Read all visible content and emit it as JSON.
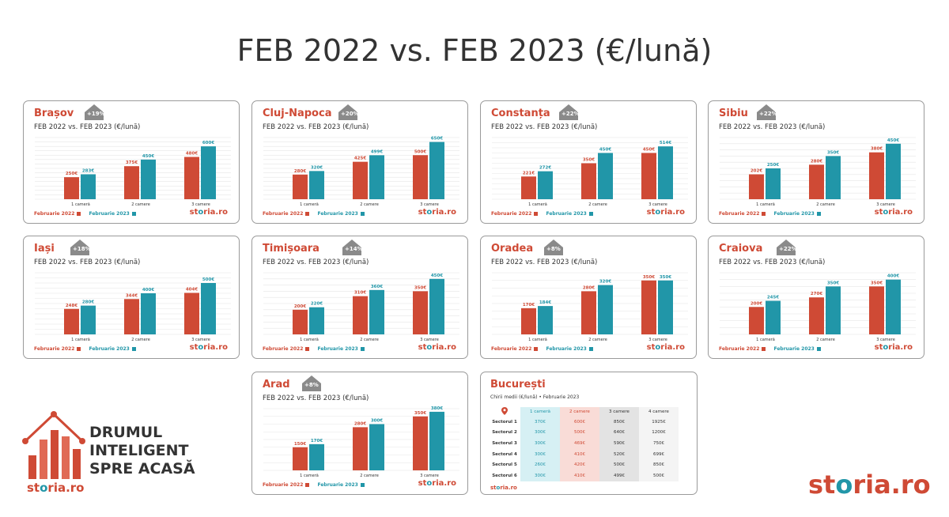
{
  "title": "FEB 2022 vs. FEB 2023 (€/lună)",
  "colors": {
    "y2022": "#cf4a35",
    "y2023": "#2196a8"
  },
  "legend": {
    "s2022": "Februarie 2022",
    "s2023": "Februarie 2023"
  },
  "brand": {
    "main": "st",
    "accent": "o",
    "rest": "ria.ro"
  },
  "logo": {
    "line1": "DRUMUL",
    "line2": "INTELIGENT",
    "line3": "SPRE ACASĂ"
  },
  "chart_data": [
    {
      "type": "bar",
      "city": "Brașov",
      "change": "+19%",
      "title": "FEB 2022 vs. FEB 2023 (€/lună)",
      "categories": [
        "1 cameră",
        "2 camere",
        "3 camere"
      ],
      "series": [
        {
          "name": "Februarie 2022",
          "values": [
            250,
            375,
            480
          ],
          "labels": [
            "250€",
            "375€",
            "480€"
          ]
        },
        {
          "name": "Februarie 2023",
          "values": [
            283,
            450,
            600
          ],
          "labels": [
            "283€",
            "450€",
            "600€"
          ]
        }
      ],
      "ylim": [
        0,
        700
      ]
    },
    {
      "type": "bar",
      "city": "Cluj-Napoca",
      "change": "+20%",
      "title": "FEB 2022 vs. FEB 2023 (€/lună)",
      "categories": [
        "1 cameră",
        "2 camere",
        "3 camere"
      ],
      "series": [
        {
          "name": "Februarie 2022",
          "values": [
            280,
            425,
            500
          ],
          "labels": [
            "280€",
            "425€",
            "500€"
          ]
        },
        {
          "name": "Februarie 2023",
          "values": [
            320,
            499,
            650
          ],
          "labels": [
            "320€",
            "499€",
            "650€"
          ]
        }
      ],
      "ylim": [
        0,
        700
      ]
    },
    {
      "type": "bar",
      "city": "Constanța",
      "change": "+22%",
      "title": "FEB 2022 vs. FEB 2023 (€/lună)",
      "categories": [
        "1 cameră",
        "2 camere",
        "3 camere"
      ],
      "series": [
        {
          "name": "Februarie 2022",
          "values": [
            221,
            350,
            450
          ],
          "labels": [
            "221€",
            "350€",
            "450€"
          ]
        },
        {
          "name": "Februarie 2023",
          "values": [
            272,
            450,
            514
          ],
          "labels": [
            "272€",
            "450€",
            "514€"
          ]
        }
      ],
      "ylim": [
        0,
        600
      ]
    },
    {
      "type": "bar",
      "city": "Sibiu",
      "change": "+22%",
      "title": "FEB 2022 vs. FEB 2023 (€/lună)",
      "categories": [
        "1 cameră",
        "2 camere",
        "3 camere"
      ],
      "series": [
        {
          "name": "Februarie 2022",
          "values": [
            202,
            280,
            380
          ],
          "labels": [
            "202€",
            "280€",
            "380€"
          ]
        },
        {
          "name": "Februarie 2023",
          "values": [
            250,
            350,
            450
          ],
          "labels": [
            "250€",
            "350€",
            "450€"
          ]
        }
      ],
      "ylim": [
        0,
        500
      ]
    },
    {
      "type": "bar",
      "city": "Iași",
      "change": "+18%",
      "title": "FEB 2022 vs. FEB 2023 (€/lună)",
      "categories": [
        "1 cameră",
        "2 camere",
        "3 camere"
      ],
      "series": [
        {
          "name": "Februarie 2022",
          "values": [
            248,
            344,
            404
          ],
          "labels": [
            "248€",
            "344€",
            "404€"
          ]
        },
        {
          "name": "Februarie 2023",
          "values": [
            280,
            400,
            500
          ],
          "labels": [
            "280€",
            "400€",
            "500€"
          ]
        }
      ],
      "ylim": [
        0,
        600
      ]
    },
    {
      "type": "bar",
      "city": "Timișoara",
      "change": "+14%",
      "title": "FEB 2022 vs. FEB 2023 (€/lună)",
      "categories": [
        "1 cameră",
        "2 camere",
        "3 camere"
      ],
      "series": [
        {
          "name": "Februarie 2022",
          "values": [
            200,
            310,
            350
          ],
          "labels": [
            "200€",
            "310€",
            "350€"
          ]
        },
        {
          "name": "Februarie 2023",
          "values": [
            220,
            360,
            450
          ],
          "labels": [
            "220€",
            "360€",
            "450€"
          ]
        }
      ],
      "ylim": [
        0,
        500
      ]
    },
    {
      "type": "bar",
      "city": "Oradea",
      "change": "+8%",
      "title": "FEB 2022 vs. FEB 2023 (€/lună)",
      "categories": [
        "1 cameră",
        "2 camere",
        "3 camere"
      ],
      "series": [
        {
          "name": "Februarie 2022",
          "values": [
            170,
            280,
            350
          ],
          "labels": [
            "170€",
            "280€",
            "350€"
          ]
        },
        {
          "name": "Februarie 2023",
          "values": [
            184,
            320,
            350
          ],
          "labels": [
            "184€",
            "320€",
            "350€"
          ]
        }
      ],
      "ylim": [
        0,
        400
      ]
    },
    {
      "type": "bar",
      "city": "Craiova",
      "change": "+22%",
      "title": "FEB 2022 vs. FEB 2023 (€/lună)",
      "categories": [
        "1 cameră",
        "2 camere",
        "3 camere"
      ],
      "series": [
        {
          "name": "Februarie 2022",
          "values": [
            200,
            270,
            350
          ],
          "labels": [
            "200€",
            "270€",
            "350€"
          ]
        },
        {
          "name": "Februarie 2023",
          "values": [
            245,
            350,
            400
          ],
          "labels": [
            "245€",
            "350€",
            "400€"
          ]
        }
      ],
      "ylim": [
        0,
        450
      ]
    },
    {
      "type": "bar",
      "city": "Arad",
      "change": "+8%",
      "title": "FEB 2022 vs. FEB 2023 (€/lună)",
      "categories": [
        "1 cameră",
        "2 camere",
        "3 camere"
      ],
      "series": [
        {
          "name": "Februarie 2022",
          "values": [
            150,
            280,
            350
          ],
          "labels": [
            "150€",
            "280€",
            "350€"
          ]
        },
        {
          "name": "Februarie 2023",
          "values": [
            170,
            300,
            380
          ],
          "labels": [
            "170€",
            "300€",
            "380€"
          ]
        }
      ],
      "ylim": [
        0,
        400
      ]
    },
    {
      "type": "table",
      "city": "București",
      "subtitle": "Chirii medii (€/lună) • Februarie 2023",
      "columns": [
        "1 cameră",
        "2 camere",
        "3 camere",
        "4 camere"
      ],
      "rows": [
        {
          "label": "Sectorul 1",
          "values": [
            "370€",
            "600€",
            "850€",
            "1925€"
          ]
        },
        {
          "label": "Sectorul 2",
          "values": [
            "300€",
            "500€",
            "640€",
            "1200€"
          ]
        },
        {
          "label": "Sectorul 3",
          "values": [
            "300€",
            "469€",
            "590€",
            "750€"
          ]
        },
        {
          "label": "Sectorul 4",
          "values": [
            "300€",
            "410€",
            "520€",
            "699€"
          ]
        },
        {
          "label": "Sectorul 5",
          "values": [
            "260€",
            "420€",
            "500€",
            "850€"
          ]
        },
        {
          "label": "Sectorul 6",
          "values": [
            "300€",
            "410€",
            "499€",
            "500€"
          ]
        }
      ]
    }
  ]
}
